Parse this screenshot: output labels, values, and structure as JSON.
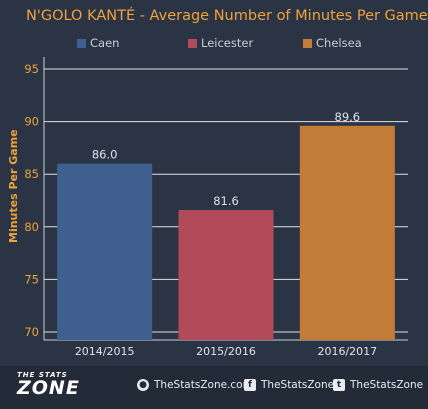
{
  "chart_data": {
    "type": "bar",
    "title": "N'GOLO KANTÉ  - Average Number of Minutes Per Game",
    "ylabel": "Minutes Per Game",
    "xlabel": "",
    "ylim": [
      70,
      95
    ],
    "yticks": [
      70,
      75,
      80,
      85,
      90,
      95
    ],
    "categories": [
      "2014/2015",
      "2015/2016",
      "2016/2017"
    ],
    "values": [
      86.0,
      81.6,
      89.6
    ],
    "value_labels": [
      "86.0",
      "81.6",
      "89.6"
    ],
    "bar_colors": [
      "#3f5f8e",
      "#b14a59",
      "#c37c37"
    ],
    "legend": [
      {
        "name": "Caen",
        "color": "#3f5f8e"
      },
      {
        "name": "Leicester",
        "color": "#b14a59"
      },
      {
        "name": "Chelsea",
        "color": "#c37c37"
      }
    ],
    "grid": true,
    "legend_position": "top"
  },
  "colors": {
    "background": "#2b3444",
    "accent": "#f0a23a",
    "gridline": "#ffffff"
  },
  "footer": {
    "logo_top": "THE STATS",
    "logo_bottom": "ZONE",
    "links": [
      {
        "icon": "globe-icon",
        "label": "TheStatsZone.com"
      },
      {
        "icon": "facebook-icon",
        "label": "TheStatsZone"
      },
      {
        "icon": "twitter-icon",
        "label": "TheStatsZone"
      }
    ]
  }
}
